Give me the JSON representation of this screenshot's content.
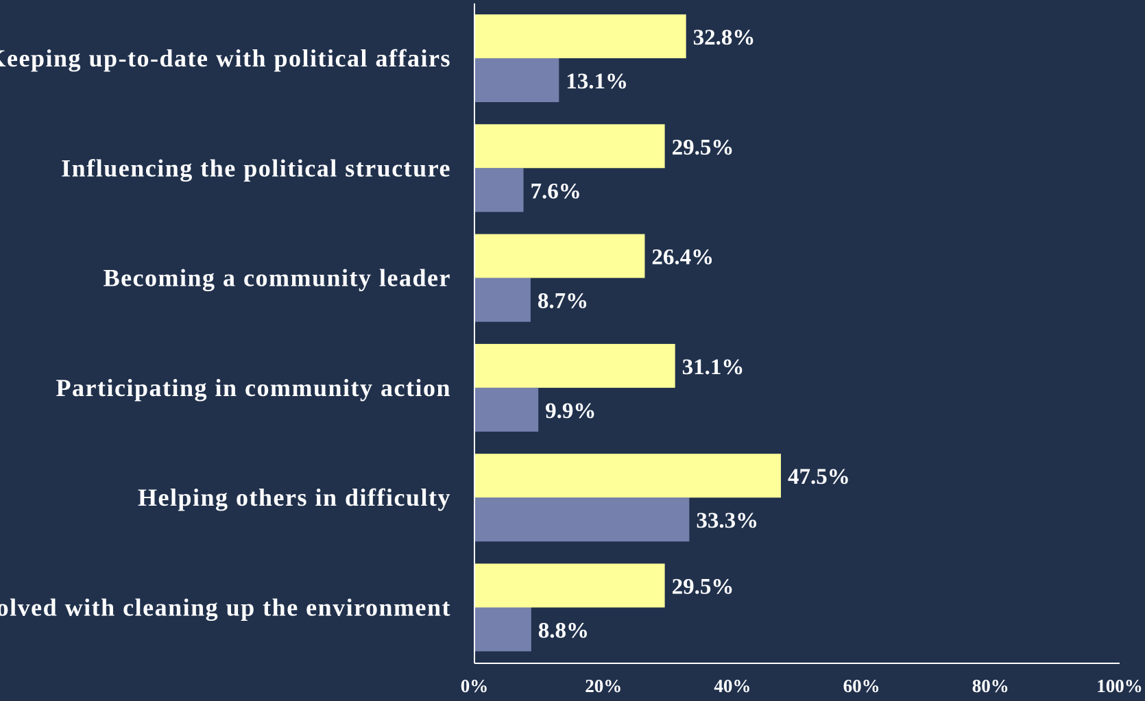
{
  "chart_data": {
    "type": "bar",
    "orientation": "horizontal",
    "title": "",
    "xlabel": "",
    "ylabel": "",
    "categories": [
      "Keeping up-to-date with political affairs",
      "Influencing the political structure",
      "Becoming a community leader",
      "Participating in community action",
      "Helping others in difficulty",
      "Involved with cleaning up the environment"
    ],
    "series": [
      {
        "values": [
          32.8,
          29.5,
          26.4,
          31.1,
          47.5,
          29.5
        ],
        "labels": [
          "32.8%",
          "29.5%",
          "26.4%",
          "31.1%",
          "47.5%",
          "29.5%"
        ],
        "color": "#ffff99"
      },
      {
        "values": [
          13.1,
          7.6,
          8.7,
          9.9,
          33.3,
          8.8
        ],
        "labels": [
          "13.1%",
          "7.6%",
          "8.7%",
          "9.9%",
          "33.3%",
          "8.8%"
        ],
        "color": "#7580ad"
      }
    ],
    "xlim": [
      0,
      100
    ],
    "x_ticks": [
      0,
      20,
      40,
      60,
      80,
      100
    ],
    "x_tick_labels": [
      "0%",
      "20%",
      "40%",
      "60%",
      "80%",
      "100%"
    ],
    "grid": false,
    "legend": "none",
    "colors": {
      "background": "#21314c",
      "axis": "#ffffff",
      "text": "#ffffff"
    }
  }
}
